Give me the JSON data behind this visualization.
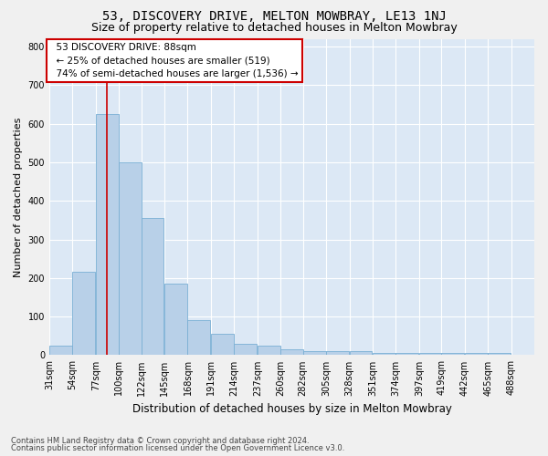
{
  "title": "53, DISCOVERY DRIVE, MELTON MOWBRAY, LE13 1NJ",
  "subtitle": "Size of property relative to detached houses in Melton Mowbray",
  "xlabel": "Distribution of detached houses by size in Melton Mowbray",
  "ylabel": "Number of detached properties",
  "footer_line1": "Contains HM Land Registry data © Crown copyright and database right 2024.",
  "footer_line2": "Contains public sector information licensed under the Open Government Licence v3.0.",
  "annotation_line1": "53 DISCOVERY DRIVE: 88sqm",
  "annotation_line2": "← 25% of detached houses are smaller (519)",
  "annotation_line3": "74% of semi-detached houses are larger (1,536) →",
  "property_size": 88,
  "bins": [
    31,
    54,
    77,
    100,
    122,
    145,
    168,
    191,
    214,
    237,
    260,
    282,
    305,
    328,
    351,
    374,
    397,
    419,
    442,
    465,
    488
  ],
  "bin_width": 23,
  "values": [
    25,
    215,
    625,
    500,
    355,
    185,
    90,
    55,
    30,
    25,
    15,
    10,
    10,
    10,
    5,
    5,
    5,
    5,
    5,
    5
  ],
  "bar_color": "#b8d0e8",
  "bar_edge_color": "#7aafd4",
  "vline_color": "#cc0000",
  "bg_color": "#dce8f5",
  "fig_bg_color": "#f0f0f0",
  "annotation_box_bg": "#ffffff",
  "annotation_box_edge": "#cc0000",
  "grid_color": "#ffffff",
  "ylim": [
    0,
    820
  ],
  "yticks": [
    0,
    100,
    200,
    300,
    400,
    500,
    600,
    700,
    800
  ],
  "title_fontsize": 10,
  "subtitle_fontsize": 9,
  "ylabel_fontsize": 8,
  "xlabel_fontsize": 8.5,
  "tick_fontsize": 7,
  "annotation_fontsize": 7.5,
  "footer_fontsize": 6
}
